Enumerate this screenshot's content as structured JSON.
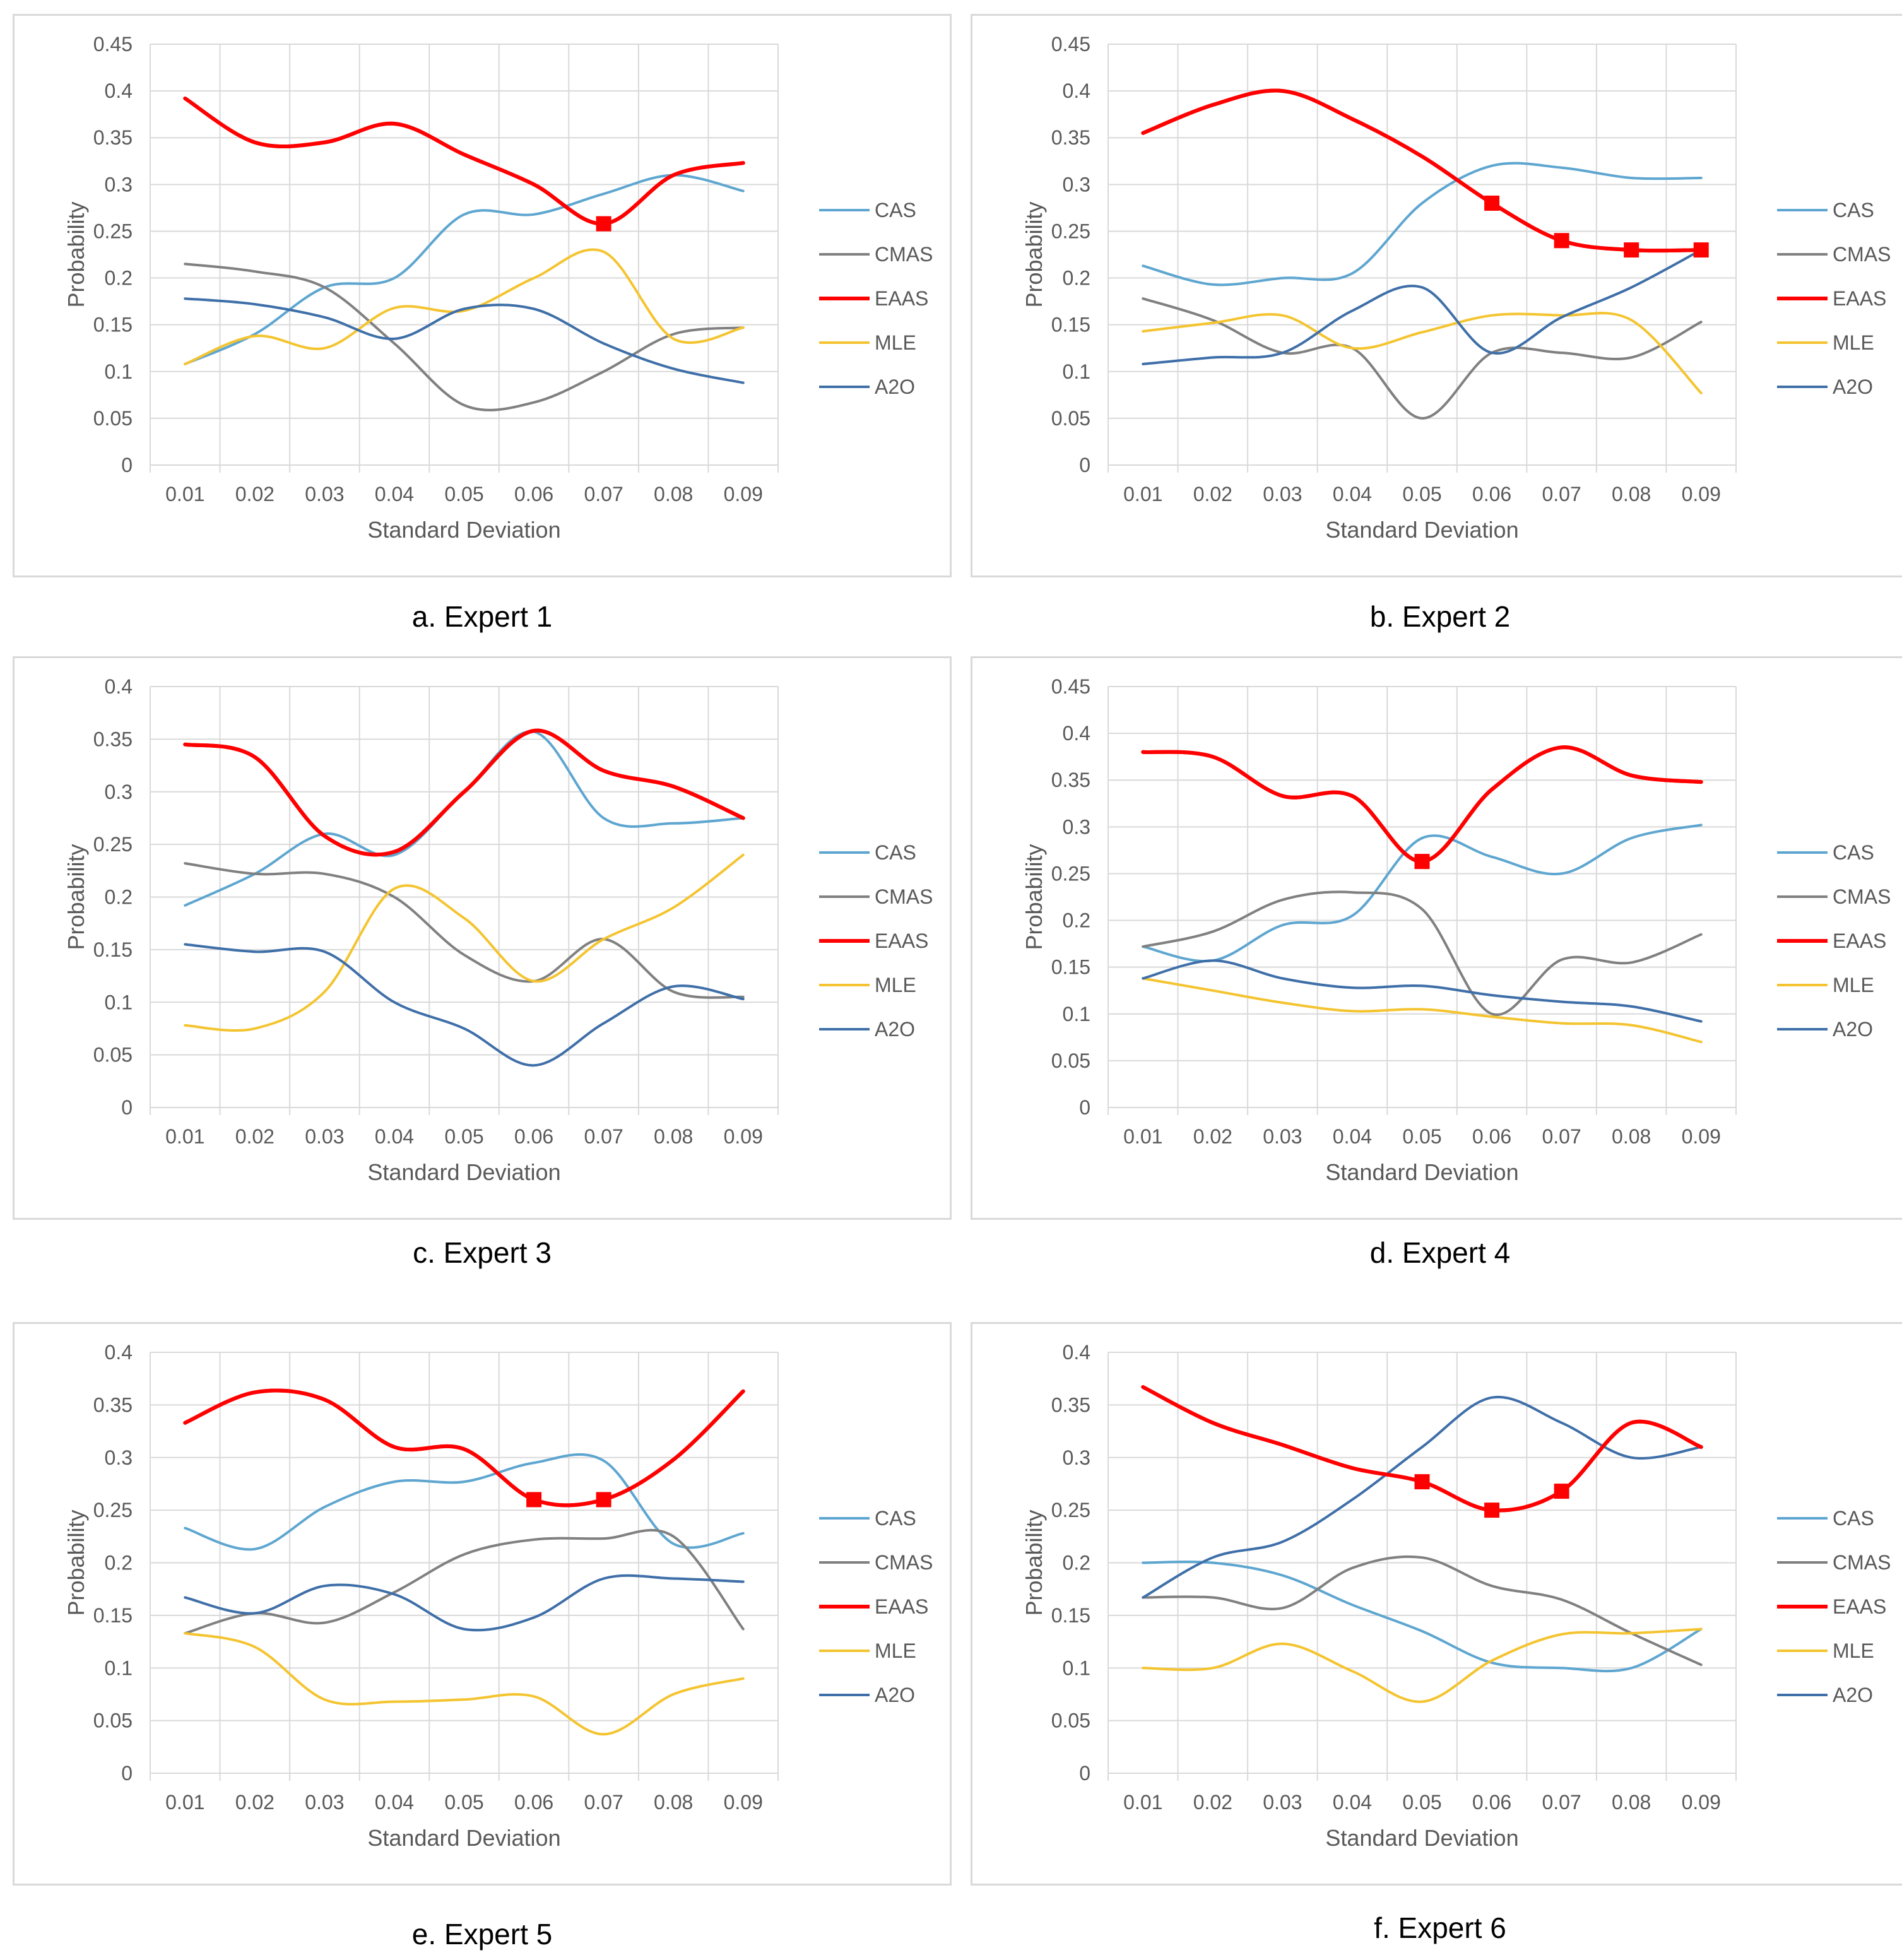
{
  "figure": {
    "captions": [
      "a. Expert 1",
      "b. Expert 2",
      "c. Expert 3",
      "d. Expert 4",
      "e. Expert 5",
      "f. Expert 6"
    ]
  },
  "colors": {
    "CAS": "#5ea6d0",
    "CMAS": "#808080",
    "EAAS": "#ff0000",
    "MLE": "#f4c430",
    "A2O": "#3f6fa8",
    "grid": "#d9d9d9",
    "marker": "#ff0000"
  },
  "chart_data": [
    {
      "type": "line",
      "title": "a. Expert 1",
      "xlabel": "Standard Deviation",
      "ylabel": "Probability",
      "x": [
        "0.01",
        "0.02",
        "0.03",
        "0.04",
        "0.05",
        "0.06",
        "0.07",
        "0.08",
        "0.09"
      ],
      "yticks": [
        "0",
        "0.05",
        "0.1",
        "0.15",
        "0.2",
        "0.25",
        "0.3",
        "0.35",
        "0.4",
        "0.45"
      ],
      "ylim": [
        0,
        0.45
      ],
      "grid": true,
      "legend_position": "right",
      "series": [
        {
          "name": "CAS",
          "values": [
            0.108,
            0.14,
            0.19,
            0.2,
            0.268,
            0.268,
            0.29,
            0.31,
            0.293
          ]
        },
        {
          "name": "CMAS",
          "values": [
            0.215,
            0.207,
            0.19,
            0.13,
            0.064,
            0.067,
            0.1,
            0.14,
            0.147
          ]
        },
        {
          "name": "EAAS",
          "values": [
            0.392,
            0.345,
            0.345,
            0.365,
            0.332,
            0.3,
            0.258,
            0.31,
            0.323
          ],
          "markers": [
            6
          ]
        },
        {
          "name": "MLE",
          "values": [
            0.108,
            0.138,
            0.125,
            0.168,
            0.165,
            0.2,
            0.228,
            0.135,
            0.147
          ]
        },
        {
          "name": "A2O",
          "values": [
            0.178,
            0.172,
            0.158,
            0.135,
            0.167,
            0.167,
            0.13,
            0.103,
            0.088
          ]
        }
      ]
    },
    {
      "type": "line",
      "title": "b. Expert 2",
      "xlabel": "Standard Deviation",
      "ylabel": "Probability",
      "x": [
        "0.01",
        "0.02",
        "0.03",
        "0.04",
        "0.05",
        "0.06",
        "0.07",
        "0.08",
        "0.09"
      ],
      "yticks": [
        "0",
        "0.05",
        "0.1",
        "0.15",
        "0.2",
        "0.25",
        "0.3",
        "0.35",
        "0.4",
        "0.45"
      ],
      "ylim": [
        0,
        0.45
      ],
      "grid": true,
      "legend_position": "right",
      "series": [
        {
          "name": "CAS",
          "values": [
            0.213,
            0.193,
            0.2,
            0.205,
            0.28,
            0.32,
            0.318,
            0.307,
            0.307
          ]
        },
        {
          "name": "CMAS",
          "values": [
            0.178,
            0.155,
            0.12,
            0.125,
            0.05,
            0.12,
            0.12,
            0.115,
            0.153
          ]
        },
        {
          "name": "EAAS",
          "values": [
            0.355,
            0.385,
            0.4,
            0.37,
            0.33,
            0.28,
            0.24,
            0.23,
            0.23
          ],
          "markers": [
            5,
            6,
            7,
            8
          ]
        },
        {
          "name": "MLE",
          "values": [
            0.143,
            0.152,
            0.16,
            0.125,
            0.142,
            0.16,
            0.16,
            0.155,
            0.077
          ]
        },
        {
          "name": "A2O",
          "values": [
            0.108,
            0.115,
            0.12,
            0.165,
            0.19,
            0.12,
            0.158,
            0.19,
            0.23
          ]
        }
      ]
    },
    {
      "type": "line",
      "title": "c. Expert 3",
      "xlabel": "Standard Deviation",
      "ylabel": "Probability",
      "x": [
        "0.01",
        "0.02",
        "0.03",
        "0.04",
        "0.05",
        "0.06",
        "0.07",
        "0.08",
        "0.09"
      ],
      "yticks": [
        "0",
        "0.05",
        "0.1",
        "0.15",
        "0.2",
        "0.25",
        "0.3",
        "0.35",
        "0.4"
      ],
      "ylim": [
        0,
        0.4
      ],
      "grid": true,
      "legend_position": "right",
      "series": [
        {
          "name": "CAS",
          "values": [
            0.192,
            0.222,
            0.26,
            0.24,
            0.3,
            0.357,
            0.275,
            0.27,
            0.275
          ]
        },
        {
          "name": "CMAS",
          "values": [
            0.232,
            0.222,
            0.222,
            0.2,
            0.145,
            0.12,
            0.16,
            0.11,
            0.105
          ]
        },
        {
          "name": "EAAS",
          "values": [
            0.345,
            0.333,
            0.258,
            0.243,
            0.3,
            0.358,
            0.32,
            0.305,
            0.275
          ]
        },
        {
          "name": "MLE",
          "values": [
            0.078,
            0.075,
            0.11,
            0.208,
            0.18,
            0.12,
            0.16,
            0.19,
            0.24
          ]
        },
        {
          "name": "A2O",
          "values": [
            0.155,
            0.148,
            0.148,
            0.1,
            0.075,
            0.04,
            0.08,
            0.115,
            0.103
          ]
        }
      ]
    },
    {
      "type": "line",
      "title": "d. Expert 4",
      "xlabel": "Standard Deviation",
      "ylabel": "Probability",
      "x": [
        "0.01",
        "0.02",
        "0.03",
        "0.04",
        "0.05",
        "0.06",
        "0.07",
        "0.08",
        "0.09"
      ],
      "yticks": [
        "0",
        "0.05",
        "0.1",
        "0.15",
        "0.2",
        "0.25",
        "0.3",
        "0.35",
        "0.4",
        "0.45"
      ],
      "ylim": [
        0,
        0.45
      ],
      "grid": true,
      "legend_position": "right",
      "series": [
        {
          "name": "CAS",
          "values": [
            0.172,
            0.157,
            0.195,
            0.205,
            0.288,
            0.268,
            0.25,
            0.288,
            0.302
          ]
        },
        {
          "name": "CMAS",
          "values": [
            0.172,
            0.188,
            0.222,
            0.23,
            0.212,
            0.1,
            0.158,
            0.155,
            0.185
          ]
        },
        {
          "name": "EAAS",
          "values": [
            0.38,
            0.375,
            0.333,
            0.333,
            0.263,
            0.34,
            0.385,
            0.355,
            0.348
          ],
          "markers": [
            4
          ]
        },
        {
          "name": "MLE",
          "values": [
            0.138,
            0.125,
            0.112,
            0.103,
            0.105,
            0.097,
            0.09,
            0.088,
            0.07
          ]
        },
        {
          "name": "A2O",
          "values": [
            0.138,
            0.157,
            0.138,
            0.128,
            0.13,
            0.12,
            0.113,
            0.108,
            0.092
          ]
        }
      ]
    },
    {
      "type": "line",
      "title": "e. Expert 5",
      "xlabel": "Standard Deviation",
      "ylabel": "Probability",
      "x": [
        "0.01",
        "0.02",
        "0.03",
        "0.04",
        "0.05",
        "0.06",
        "0.07",
        "0.08",
        "0.09"
      ],
      "yticks": [
        "0",
        "0.05",
        "0.1",
        "0.15",
        "0.2",
        "0.25",
        "0.3",
        "0.35",
        "0.4"
      ],
      "ylim": [
        0,
        0.4
      ],
      "grid": true,
      "legend_position": "right",
      "series": [
        {
          "name": "CAS",
          "values": [
            0.233,
            0.213,
            0.253,
            0.277,
            0.277,
            0.295,
            0.297,
            0.218,
            0.228
          ]
        },
        {
          "name": "CMAS",
          "values": [
            0.133,
            0.152,
            0.143,
            0.172,
            0.208,
            0.222,
            0.223,
            0.225,
            0.137
          ]
        },
        {
          "name": "EAAS",
          "values": [
            0.333,
            0.362,
            0.355,
            0.31,
            0.308,
            0.26,
            0.26,
            0.298,
            0.363
          ],
          "markers": [
            5,
            6
          ]
        },
        {
          "name": "MLE",
          "values": [
            0.133,
            0.12,
            0.07,
            0.068,
            0.07,
            0.073,
            0.037,
            0.075,
            0.09
          ]
        },
        {
          "name": "A2O",
          "values": [
            0.167,
            0.152,
            0.178,
            0.17,
            0.137,
            0.148,
            0.185,
            0.185,
            0.182
          ]
        }
      ]
    },
    {
      "type": "line",
      "title": "f. Expert 6",
      "xlabel": "Standard Deviation",
      "ylabel": "Probability",
      "x": [
        "0.01",
        "0.02",
        "0.03",
        "0.04",
        "0.05",
        "0.06",
        "0.07",
        "0.08",
        "0.09"
      ],
      "yticks": [
        "0",
        "0.05",
        "0.1",
        "0.15",
        "0.2",
        "0.25",
        "0.3",
        "0.35",
        "0.4"
      ],
      "ylim": [
        0,
        0.4
      ],
      "grid": true,
      "legend_position": "right",
      "series": [
        {
          "name": "CAS",
          "values": [
            0.2,
            0.2,
            0.188,
            0.16,
            0.135,
            0.105,
            0.1,
            0.1,
            0.137
          ]
        },
        {
          "name": "CMAS",
          "values": [
            0.167,
            0.167,
            0.157,
            0.195,
            0.205,
            0.178,
            0.165,
            0.133,
            0.103
          ]
        },
        {
          "name": "EAAS",
          "values": [
            0.367,
            0.333,
            0.312,
            0.29,
            0.277,
            0.25,
            0.268,
            0.333,
            0.31
          ],
          "markers": [
            4,
            5,
            6
          ]
        },
        {
          "name": "MLE",
          "values": [
            0.1,
            0.1,
            0.123,
            0.097,
            0.068,
            0.107,
            0.132,
            0.133,
            0.137
          ]
        },
        {
          "name": "A2O",
          "values": [
            0.167,
            0.205,
            0.22,
            0.26,
            0.31,
            0.357,
            0.333,
            0.3,
            0.31
          ]
        }
      ]
    }
  ]
}
